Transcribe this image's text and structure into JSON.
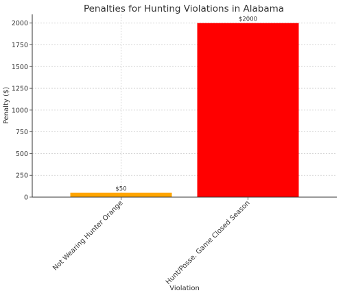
{
  "chart_data": {
    "type": "bar",
    "title": "Penalties for Hunting Violations in Alabama",
    "xlabel": "Violation",
    "ylabel": "Penalty ($)",
    "categories": [
      "Not Wearing Hunter Orange",
      "Hunt/Posse. Game Closed Season"
    ],
    "values": [
      50,
      2000
    ],
    "data_labels": [
      "$50",
      "$2000"
    ],
    "colors": [
      "#FFA500",
      "#FF0000"
    ],
    "ylim": [
      0,
      2100
    ],
    "yticks": [
      0,
      250,
      500,
      750,
      1000,
      1250,
      1500,
      1750,
      2000
    ],
    "grid": true
  }
}
